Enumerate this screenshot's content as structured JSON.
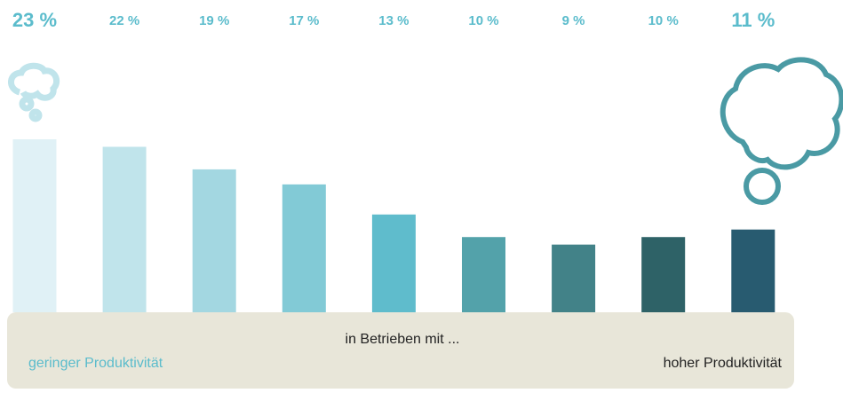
{
  "chart_data": {
    "type": "bar",
    "categories": [
      null,
      null,
      null,
      null,
      null,
      null,
      null,
      null,
      null
    ],
    "values": [
      23,
      22,
      19,
      17,
      13,
      10,
      9,
      10,
      11
    ],
    "value_labels": [
      "23 %",
      "22 %",
      "19 %",
      "17 %",
      "13 %",
      "10 %",
      "9 %",
      "10 %",
      "11 %"
    ],
    "colors": [
      "#e0f1f6",
      "#c0e4eb",
      "#a3d7e1",
      "#82cad6",
      "#5fbccc",
      "#53a2aa",
      "#428288",
      "#2e6267",
      "#285b70"
    ],
    "axis_title": "in Betrieben mit ...",
    "axis_start_label": "geringer Produktivität",
    "axis_end_label": "hoher Produktivität"
  }
}
